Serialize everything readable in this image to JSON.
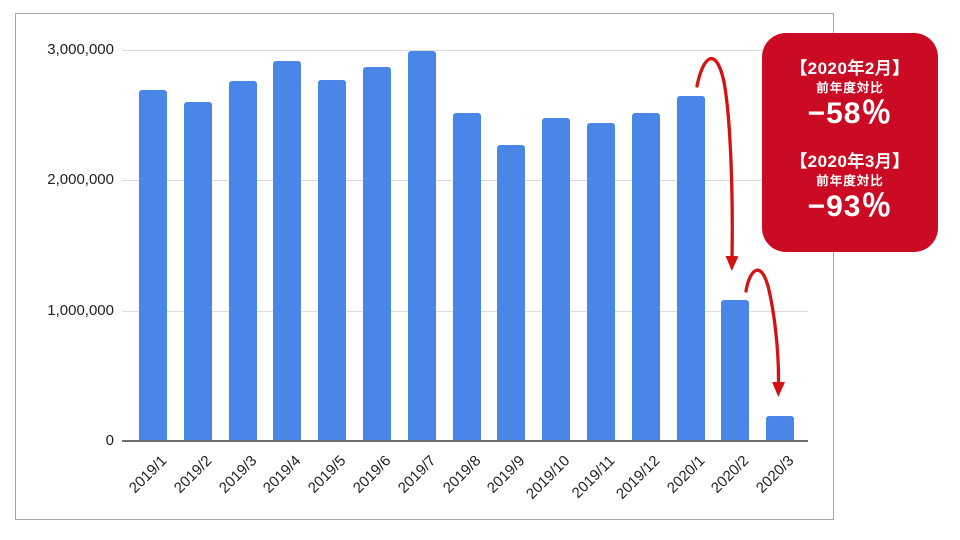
{
  "chart_data": {
    "type": "bar",
    "title": "",
    "xlabel": "",
    "ylabel": "",
    "categories": [
      "2019/1",
      "2019/2",
      "2019/3",
      "2019/4",
      "2019/5",
      "2019/6",
      "2019/7",
      "2019/8",
      "2019/9",
      "2019/10",
      "2019/11",
      "2019/12",
      "2020/1",
      "2020/2",
      "2020/3"
    ],
    "values": [
      2690000,
      2600000,
      2760000,
      2920000,
      2770000,
      2870000,
      2990000,
      2520000,
      2270000,
      2480000,
      2440000,
      2520000,
      2650000,
      1080000,
      190000
    ],
    "ylim": [
      0,
      3000000
    ],
    "yticks": [
      0,
      1000000,
      2000000,
      3000000
    ],
    "ytick_labels": [
      "0",
      "1,000,000",
      "2,000,000",
      "3,000,000"
    ],
    "grid": true,
    "legend": "none",
    "bar_color": "#4a86e8"
  },
  "annotation": {
    "background": "#cb0b23",
    "text_color": "#ffffff",
    "arrow_color": "#d41212",
    "items": [
      {
        "title": "【2020年2月】",
        "subtitle": "前年度対比",
        "value": "−58％"
      },
      {
        "title": "【2020年3月】",
        "subtitle": "前年度対比",
        "value": "−93％"
      }
    ]
  }
}
